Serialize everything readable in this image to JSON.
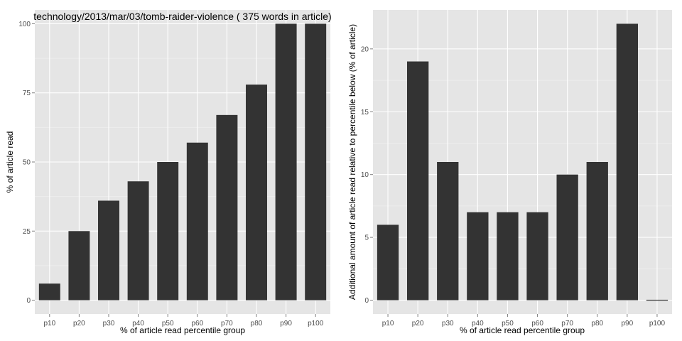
{
  "chart_data": [
    {
      "type": "bar",
      "title": "technology/2013/mar/03/tomb-raider-violence ( 375 words in article)",
      "xlabel": "% of article read percentile group",
      "ylabel": "% of article read",
      "categories": [
        "p10",
        "p20",
        "p30",
        "p40",
        "p50",
        "p60",
        "p70",
        "p80",
        "p90",
        "p100"
      ],
      "values": [
        6,
        25,
        36,
        43,
        50,
        57,
        67,
        78,
        100,
        100
      ],
      "ylim": [
        -5,
        105
      ],
      "yticks": [
        0,
        25,
        50,
        75,
        100
      ],
      "ytick_labels": [
        "0",
        "25",
        "50",
        "75",
        "100"
      ],
      "grid": true
    },
    {
      "type": "bar",
      "title": "",
      "xlabel": "% of article read percentile group",
      "ylabel": "Additional amount of article read relative to percentile below (% of article)",
      "categories": [
        "p10",
        "p20",
        "p30",
        "p40",
        "p50",
        "p60",
        "p70",
        "p80",
        "p90",
        "p100"
      ],
      "values": [
        6,
        19,
        11,
        7,
        7,
        7,
        10,
        11,
        22,
        0
      ],
      "ylim": [
        -1.1,
        23.1
      ],
      "yticks": [
        0,
        5,
        10,
        15,
        20
      ],
      "ytick_labels": [
        "0",
        "5",
        "10",
        "15",
        "20"
      ],
      "grid": true
    }
  ],
  "colors": {
    "panel_background": "#e5e5e5",
    "grid_major": "#ffffff",
    "grid_minor": "#f2f2f2",
    "bar_fill": "#333333",
    "tick_text": "#4d4d4d"
  }
}
